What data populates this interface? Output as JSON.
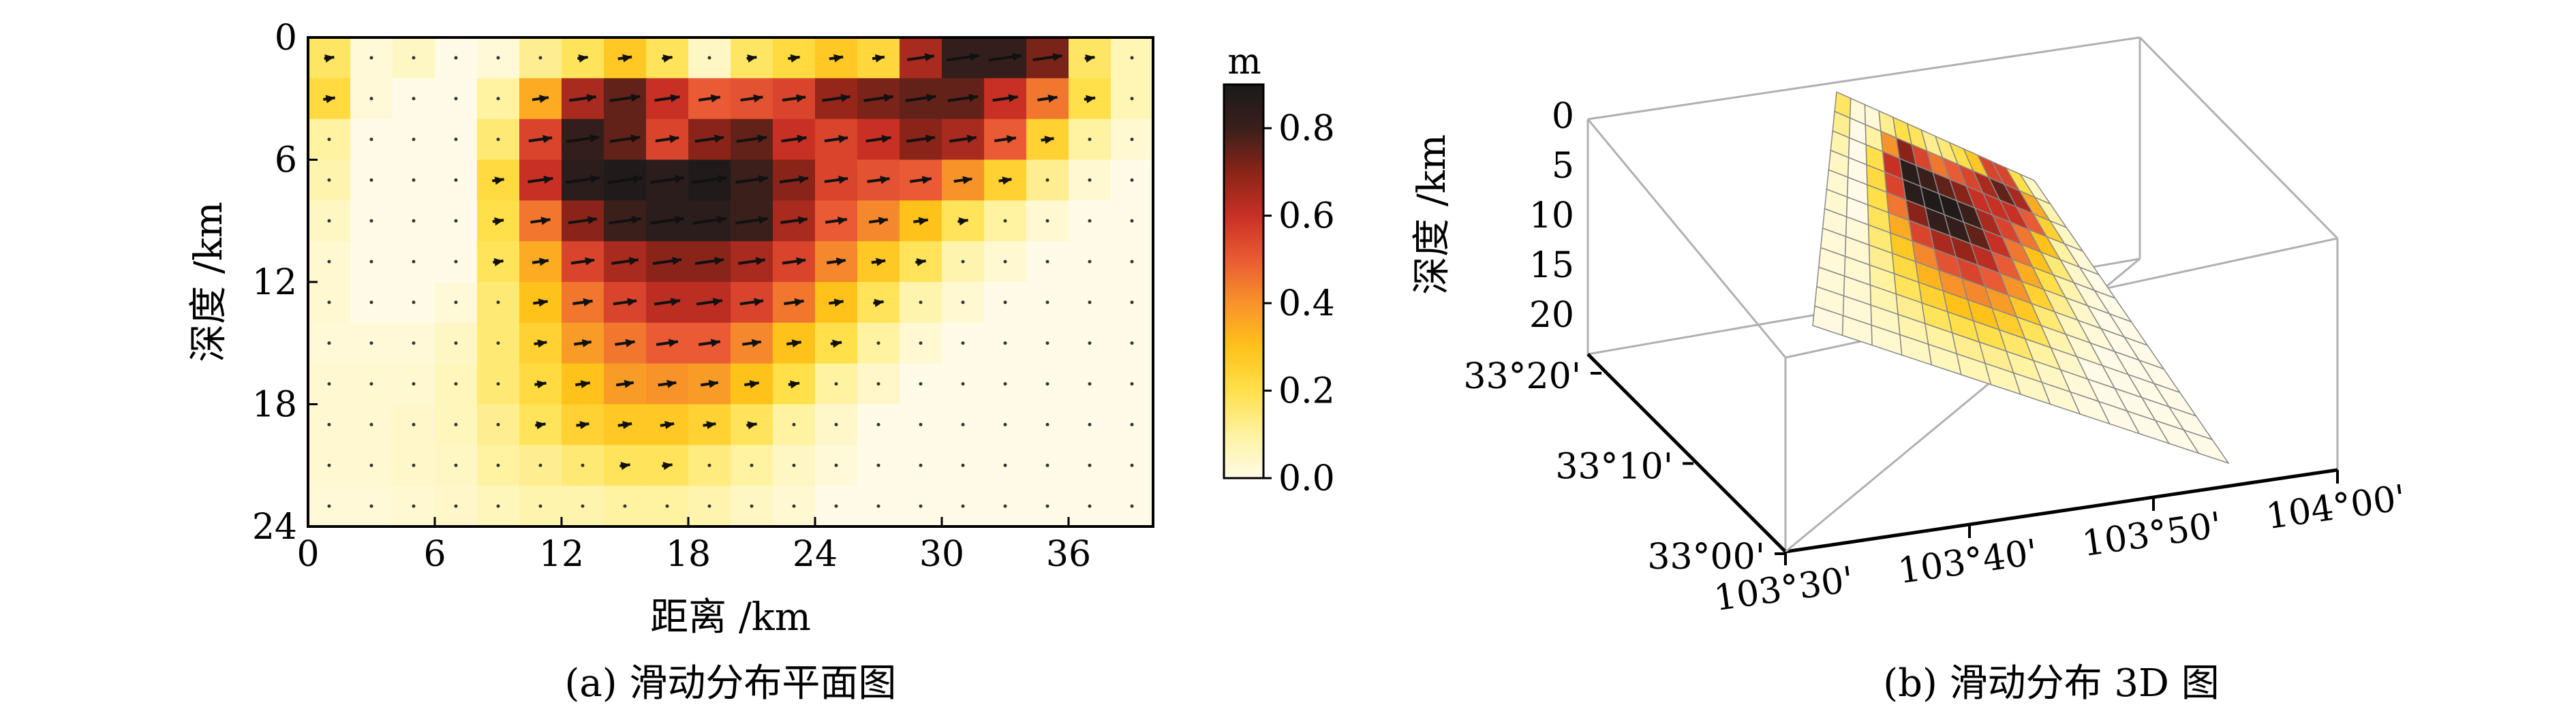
{
  "chart_data": [
    {
      "type": "heatmap",
      "xlabel": "距离 /km",
      "ylabel": "深度 /km",
      "caption": "(a) 滑动分布平面图",
      "xlim": [
        0,
        40
      ],
      "ylim": [
        0,
        24
      ],
      "x_ticks": [
        "0",
        "6",
        "12",
        "18",
        "24",
        "30",
        "36"
      ],
      "y_ticks": [
        "0",
        "6",
        "12",
        "18",
        "24"
      ],
      "grid": {
        "cols": 20,
        "rows": 12,
        "cell_width_km": 2,
        "cell_height_km": 2
      },
      "colorbar": {
        "unit": "m",
        "range": [
          0,
          0.9
        ],
        "ticks": [
          "0.0",
          "0.2",
          "0.4",
          "0.6",
          "0.8"
        ],
        "colors": [
          "#fffbe6",
          "#fff2a0",
          "#ffe04a",
          "#ffc21a",
          "#f8932a",
          "#ea5a34",
          "#c83024",
          "#8a2418",
          "#3a1f1b",
          "#1a1a1a"
        ]
      },
      "slip": [
        [
          0.17,
          0.02,
          0.05,
          0.0,
          0.02,
          0.12,
          0.18,
          0.28,
          0.18,
          0.05,
          0.17,
          0.22,
          0.28,
          0.23,
          0.65,
          0.82,
          0.82,
          0.72,
          0.17,
          0.07
        ],
        [
          0.22,
          0.02,
          0.0,
          0.0,
          0.1,
          0.35,
          0.65,
          0.75,
          0.6,
          0.5,
          0.52,
          0.55,
          0.68,
          0.72,
          0.75,
          0.75,
          0.6,
          0.45,
          0.2,
          0.07
        ],
        [
          0.1,
          0.0,
          0.0,
          0.0,
          0.15,
          0.55,
          0.82,
          0.75,
          0.55,
          0.7,
          0.75,
          0.6,
          0.55,
          0.6,
          0.7,
          0.65,
          0.5,
          0.25,
          0.1,
          0.03
        ],
        [
          0.08,
          0.0,
          0.0,
          0.0,
          0.22,
          0.6,
          0.85,
          0.88,
          0.85,
          0.88,
          0.8,
          0.7,
          0.55,
          0.52,
          0.5,
          0.4,
          0.25,
          0.12,
          0.03,
          0.0
        ],
        [
          0.05,
          0.0,
          0.0,
          0.0,
          0.2,
          0.45,
          0.7,
          0.8,
          0.85,
          0.85,
          0.8,
          0.65,
          0.5,
          0.42,
          0.3,
          0.18,
          0.1,
          0.03,
          0.0,
          0.0
        ],
        [
          0.03,
          0.0,
          0.0,
          0.0,
          0.18,
          0.35,
          0.55,
          0.65,
          0.7,
          0.7,
          0.65,
          0.55,
          0.42,
          0.28,
          0.18,
          0.08,
          0.03,
          0.0,
          0.0,
          0.0
        ],
        [
          0.03,
          0.0,
          0.0,
          0.02,
          0.15,
          0.3,
          0.45,
          0.55,
          0.62,
          0.62,
          0.55,
          0.45,
          0.3,
          0.18,
          0.08,
          0.03,
          0.0,
          0.0,
          0.0,
          0.0
        ],
        [
          0.02,
          0.02,
          0.02,
          0.05,
          0.15,
          0.25,
          0.38,
          0.45,
          0.5,
          0.5,
          0.42,
          0.3,
          0.2,
          0.1,
          0.03,
          0.0,
          0.0,
          0.0,
          0.0,
          0.0
        ],
        [
          0.03,
          0.03,
          0.03,
          0.06,
          0.15,
          0.22,
          0.3,
          0.38,
          0.4,
          0.38,
          0.3,
          0.2,
          0.1,
          0.04,
          0.0,
          0.0,
          0.0,
          0.0,
          0.0,
          0.0
        ],
        [
          0.03,
          0.03,
          0.04,
          0.06,
          0.12,
          0.18,
          0.25,
          0.28,
          0.28,
          0.25,
          0.18,
          0.1,
          0.04,
          0.0,
          0.0,
          0.0,
          0.0,
          0.0,
          0.0,
          0.0
        ],
        [
          0.03,
          0.03,
          0.04,
          0.05,
          0.1,
          0.12,
          0.15,
          0.18,
          0.18,
          0.14,
          0.1,
          0.05,
          0.02,
          0.0,
          0.0,
          0.0,
          0.0,
          0.0,
          0.0,
          0.0
        ],
        [
          0.02,
          0.02,
          0.03,
          0.04,
          0.06,
          0.08,
          0.08,
          0.1,
          0.1,
          0.08,
          0.05,
          0.03,
          0.0,
          0.0,
          0.0,
          0.0,
          0.0,
          0.0,
          0.0,
          0.0
        ]
      ]
    },
    {
      "type": "heatmap",
      "caption": "(b) 滑动分布 3D 图",
      "zlabel": "深度 /km",
      "z_ticks": [
        "0",
        "5",
        "10",
        "15",
        "20"
      ],
      "lon_ticks": [
        "103°30'",
        "103°40'",
        "103°50'",
        "104°00'"
      ],
      "lat_ticks": [
        "33°00'",
        "33°10'",
        "33°20'"
      ],
      "grid": {
        "cols": 14,
        "rows": 12
      },
      "slip": [
        [
          0.17,
          0.02,
          0.02,
          0.12,
          0.2,
          0.18,
          0.12,
          0.15,
          0.2,
          0.28,
          0.55,
          0.55,
          0.2,
          0.05
        ],
        [
          0.12,
          0.0,
          0.1,
          0.4,
          0.7,
          0.55,
          0.45,
          0.5,
          0.55,
          0.65,
          0.75,
          0.65,
          0.35,
          0.08
        ],
        [
          0.08,
          0.0,
          0.2,
          0.6,
          0.85,
          0.8,
          0.75,
          0.7,
          0.6,
          0.6,
          0.6,
          0.5,
          0.25,
          0.05
        ],
        [
          0.05,
          0.0,
          0.22,
          0.55,
          0.85,
          0.88,
          0.88,
          0.8,
          0.65,
          0.55,
          0.45,
          0.3,
          0.1,
          0.02
        ],
        [
          0.03,
          0.0,
          0.2,
          0.45,
          0.7,
          0.82,
          0.82,
          0.75,
          0.6,
          0.45,
          0.3,
          0.15,
          0.04,
          0.0
        ],
        [
          0.03,
          0.0,
          0.18,
          0.35,
          0.55,
          0.65,
          0.68,
          0.62,
          0.5,
          0.35,
          0.2,
          0.08,
          0.02,
          0.0
        ],
        [
          0.02,
          0.02,
          0.15,
          0.28,
          0.42,
          0.52,
          0.55,
          0.5,
          0.4,
          0.25,
          0.12,
          0.04,
          0.0,
          0.0
        ],
        [
          0.02,
          0.03,
          0.12,
          0.22,
          0.33,
          0.4,
          0.42,
          0.38,
          0.28,
          0.15,
          0.06,
          0.02,
          0.0,
          0.0
        ],
        [
          0.02,
          0.03,
          0.1,
          0.18,
          0.25,
          0.3,
          0.3,
          0.26,
          0.18,
          0.08,
          0.03,
          0.0,
          0.0,
          0.0
        ],
        [
          0.02,
          0.03,
          0.08,
          0.12,
          0.18,
          0.2,
          0.2,
          0.16,
          0.1,
          0.04,
          0.0,
          0.0,
          0.0,
          0.0
        ],
        [
          0.02,
          0.02,
          0.05,
          0.08,
          0.1,
          0.12,
          0.12,
          0.1,
          0.05,
          0.02,
          0.0,
          0.0,
          0.0,
          0.0
        ],
        [
          0.01,
          0.02,
          0.03,
          0.05,
          0.06,
          0.07,
          0.07,
          0.05,
          0.03,
          0.01,
          0.0,
          0.0,
          0.0,
          0.0
        ]
      ]
    }
  ]
}
